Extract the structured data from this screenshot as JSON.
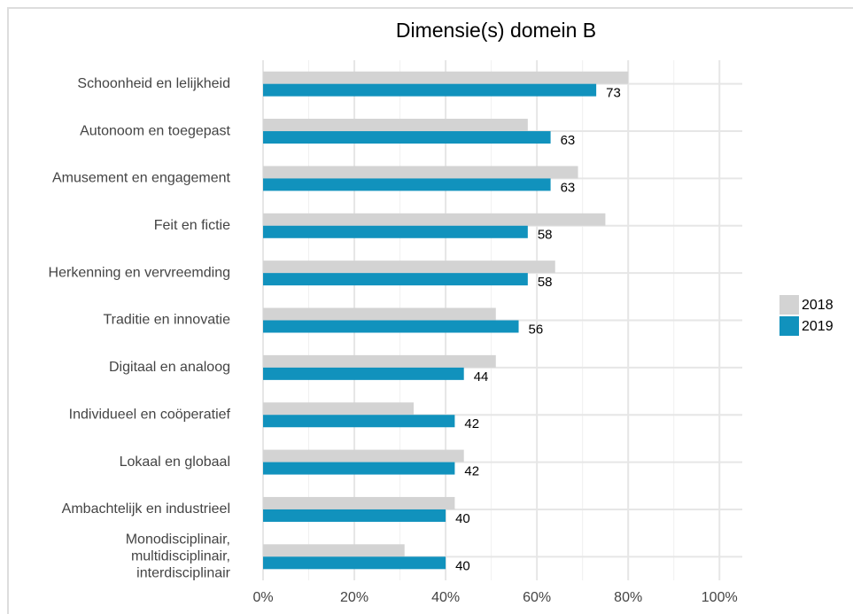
{
  "chart_data": {
    "type": "bar",
    "orientation": "horizontal",
    "title": "Dimensie(s) domein B",
    "categories": [
      "Schoonheid en lelijkheid",
      "Autonoom en toegepast",
      "Amusement en engagement",
      "Feit en fictie",
      "Herkenning en vervreemding",
      "Traditie en innovatie",
      "Digitaal en analoog",
      "Individueel en coöperatief",
      "Lokaal en globaal",
      "Ambachtelijk en industrieel",
      "Monodisciplinair,\nmultidisciplinair,\ninterdisciplinair"
    ],
    "series": [
      {
        "name": "2018",
        "color": "#d3d3d3",
        "values": [
          80,
          58,
          69,
          75,
          64,
          51,
          51,
          33,
          44,
          42,
          31
        ]
      },
      {
        "name": "2019",
        "color": "#1192bd",
        "values": [
          73,
          63,
          63,
          58,
          58,
          56,
          44,
          42,
          42,
          40,
          40
        ],
        "show_value_labels": true
      }
    ],
    "xlim": [
      0,
      105
    ],
    "xticks": [
      {
        "value": 0,
        "label": "0%"
      },
      {
        "value": 20,
        "label": "20%"
      },
      {
        "value": 40,
        "label": "40%"
      },
      {
        "value": 60,
        "label": "60%"
      },
      {
        "value": 80,
        "label": "80%"
      },
      {
        "value": 100,
        "label": "100%"
      }
    ],
    "grid": true,
    "legend": "right"
  }
}
